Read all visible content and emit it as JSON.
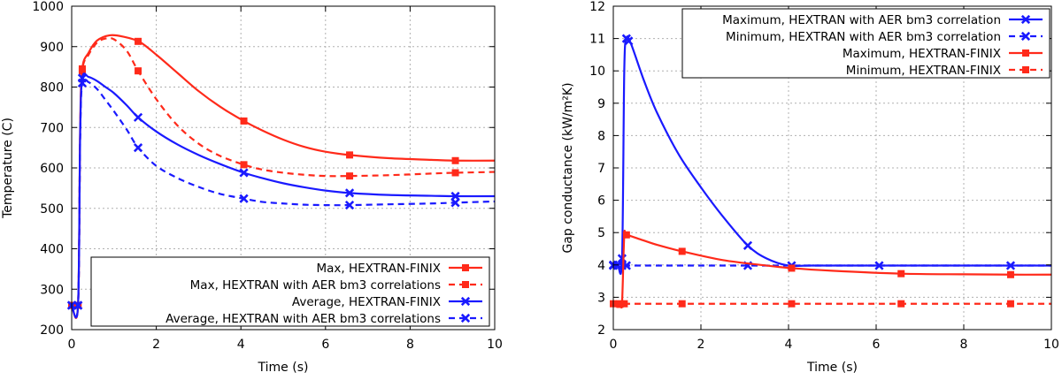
{
  "chart_data": [
    {
      "type": "line",
      "xlabel": "Time (s)",
      "ylabel": "Temperature (C)",
      "xlim": [
        0,
        10
      ],
      "ylim": [
        200,
        1000
      ],
      "xticks": [
        0,
        2,
        4,
        6,
        8,
        10
      ],
      "yticks": [
        200,
        300,
        400,
        500,
        600,
        700,
        800,
        900,
        1000
      ],
      "grid": true,
      "legend_position": "bottom-right",
      "series": [
        {
          "name": "Max, HEXTRAN-FINIX",
          "color": "#ff2a1a",
          "style": "solid",
          "marker": "square",
          "points": [
            [
              0,
              260
            ],
            [
              0.15,
              260
            ],
            [
              0.2,
              700
            ],
            [
              0.25,
              845
            ],
            [
              0.4,
              885
            ],
            [
              0.6,
              915
            ],
            [
              0.9,
              928
            ],
            [
              1.2,
              925
            ],
            [
              1.6,
              912
            ],
            [
              2.0,
              880
            ],
            [
              2.5,
              835
            ],
            [
              3.0,
              790
            ],
            [
              3.5,
              752
            ],
            [
              4.07,
              716
            ],
            [
              4.5,
              693
            ],
            [
              5.0,
              670
            ],
            [
              5.5,
              652
            ],
            [
              6.0,
              640
            ],
            [
              6.57,
              632
            ],
            [
              7.5,
              624
            ],
            [
              8.5,
              620
            ],
            [
              9.07,
              618
            ],
            [
              10,
              618
            ]
          ],
          "marker_x": [
            0,
            0.15,
            0.25,
            1.57,
            4.07,
            6.57,
            9.07
          ]
        },
        {
          "name": "Max, HEXTRAN with AER bm3 correlations",
          "color": "#ff2a1a",
          "style": "dashed",
          "marker": "square",
          "points": [
            [
              0,
              260
            ],
            [
              0.15,
              260
            ],
            [
              0.2,
              680
            ],
            [
              0.25,
              840
            ],
            [
              0.4,
              880
            ],
            [
              0.6,
              910
            ],
            [
              0.8,
              920
            ],
            [
              1.0,
              918
            ],
            [
              1.3,
              890
            ],
            [
              1.57,
              840
            ],
            [
              2.0,
              770
            ],
            [
              2.5,
              705
            ],
            [
              3.0,
              660
            ],
            [
              3.5,
              630
            ],
            [
              4.07,
              608
            ],
            [
              4.5,
              596
            ],
            [
              5.0,
              588
            ],
            [
              5.5,
              583
            ],
            [
              6.0,
              580
            ],
            [
              6.57,
              580
            ],
            [
              7.5,
              582
            ],
            [
              8.5,
              586
            ],
            [
              9.07,
              588
            ],
            [
              10,
              590
            ]
          ],
          "marker_x": [
            0,
            0.15,
            0.25,
            1.57,
            4.07,
            6.57,
            9.07
          ]
        },
        {
          "name": "Average, HEXTRAN-FINIX",
          "color": "#1a1aff",
          "style": "solid",
          "marker": "x",
          "points": [
            [
              0,
              260
            ],
            [
              0.15,
              260
            ],
            [
              0.2,
              680
            ],
            [
              0.25,
              822
            ],
            [
              0.4,
              825
            ],
            [
              0.6,
              815
            ],
            [
              0.8,
              800
            ],
            [
              1.0,
              785
            ],
            [
              1.3,
              755
            ],
            [
              1.57,
              725
            ],
            [
              2.0,
              690
            ],
            [
              2.5,
              658
            ],
            [
              3.0,
              632
            ],
            [
              3.5,
              610
            ],
            [
              4.07,
              588
            ],
            [
              4.5,
              575
            ],
            [
              5.0,
              562
            ],
            [
              5.5,
              552
            ],
            [
              6.0,
              544
            ],
            [
              6.57,
              538
            ],
            [
              7.5,
              533
            ],
            [
              8.5,
              531
            ],
            [
              9.07,
              530
            ],
            [
              10,
              530
            ]
          ],
          "marker_x": [
            0,
            0.15,
            0.25,
            1.57,
            4.07,
            6.57,
            9.07
          ]
        },
        {
          "name": "Average, HEXTRAN with AER bm3 correlations",
          "color": "#1a1aff",
          "style": "dashed",
          "marker": "x",
          "points": [
            [
              0,
              260
            ],
            [
              0.15,
              260
            ],
            [
              0.2,
              670
            ],
            [
              0.25,
              810
            ],
            [
              0.4,
              812
            ],
            [
              0.6,
              795
            ],
            [
              0.8,
              768
            ],
            [
              1.0,
              740
            ],
            [
              1.3,
              695
            ],
            [
              1.57,
              650
            ],
            [
              2.0,
              605
            ],
            [
              2.5,
              575
            ],
            [
              3.0,
              553
            ],
            [
              3.5,
              536
            ],
            [
              4.07,
              524
            ],
            [
              4.5,
              516
            ],
            [
              5.0,
              512
            ],
            [
              5.5,
              509
            ],
            [
              6.0,
              508
            ],
            [
              6.57,
              508
            ],
            [
              7.5,
              510
            ],
            [
              8.5,
              512
            ],
            [
              9.07,
              514
            ],
            [
              10,
              517
            ]
          ],
          "marker_x": [
            0,
            0.15,
            0.25,
            1.57,
            4.07,
            6.57,
            9.07
          ]
        }
      ]
    },
    {
      "type": "line",
      "xlabel": "Time (s)",
      "ylabel": "Gap conductance (kW/m²K)",
      "xlim": [
        0,
        10
      ],
      "ylim": [
        2,
        12
      ],
      "xticks": [
        0,
        2,
        4,
        6,
        8,
        10
      ],
      "yticks": [
        2,
        3,
        4,
        5,
        6,
        7,
        8,
        9,
        10,
        11,
        12
      ],
      "grid": true,
      "legend_position": "top-right",
      "series": [
        {
          "name": "Maximum, HEXTRAN with AER bm3 correlation",
          "color": "#1a1aff",
          "style": "solid",
          "marker": "x",
          "points": [
            [
              0,
              4.0
            ],
            [
              0.1,
              4.0
            ],
            [
              0.2,
              4.2
            ],
            [
              0.25,
              10.0
            ],
            [
              0.3,
              11.0
            ],
            [
              0.4,
              10.85
            ],
            [
              0.7,
              9.7
            ],
            [
              1.0,
              8.7
            ],
            [
              1.5,
              7.4
            ],
            [
              2.0,
              6.4
            ],
            [
              2.5,
              5.5
            ],
            [
              3.07,
              4.6
            ],
            [
              3.5,
              4.2
            ],
            [
              4.0,
              3.98
            ],
            [
              4.5,
              3.98
            ],
            [
              6.07,
              3.98
            ],
            [
              8,
              3.98
            ],
            [
              9.07,
              3.98
            ],
            [
              10,
              3.98
            ]
          ],
          "marker_x": [
            0,
            0.1,
            0.2,
            0.3,
            0.35,
            3.07,
            4.07,
            6.07,
            9.07
          ]
        },
        {
          "name": "Minimum, HEXTRAN with AER bm3 correlation",
          "color": "#1a1aff",
          "style": "dashed",
          "marker": "x",
          "points": [
            [
              0,
              3.98
            ],
            [
              0.5,
              3.98
            ],
            [
              2,
              3.98
            ],
            [
              4,
              3.98
            ],
            [
              6,
              3.98
            ],
            [
              8,
              3.98
            ],
            [
              10,
              3.98
            ]
          ],
          "marker_x": [
            0,
            0.1,
            0.2,
            0.3,
            3.07
          ]
        },
        {
          "name": "Maximum, HEXTRAN-FINIX",
          "color": "#ff2a1a",
          "style": "solid",
          "marker": "square",
          "points": [
            [
              0,
              2.78
            ],
            [
              0.15,
              2.78
            ],
            [
              0.2,
              2.85
            ],
            [
              0.25,
              4.9
            ],
            [
              0.3,
              4.93
            ],
            [
              0.6,
              4.8
            ],
            [
              1.0,
              4.62
            ],
            [
              1.57,
              4.42
            ],
            [
              2.5,
              4.15
            ],
            [
              3.5,
              3.98
            ],
            [
              4.07,
              3.9
            ],
            [
              5.0,
              3.82
            ],
            [
              6.57,
              3.73
            ],
            [
              8.0,
              3.71
            ],
            [
              9.07,
              3.7
            ],
            [
              10,
              3.7
            ]
          ],
          "marker_x": [
            0.15,
            0.3,
            1.57,
            4.07,
            6.57,
            9.07
          ]
        },
        {
          "name": "Minimum, HEXTRAN-FINIX",
          "color": "#ff2a1a",
          "style": "dashed",
          "marker": "square",
          "points": [
            [
              0,
              2.8
            ],
            [
              2,
              2.8
            ],
            [
              4,
              2.8
            ],
            [
              6,
              2.8
            ],
            [
              8,
              2.8
            ],
            [
              10,
              2.8
            ]
          ],
          "marker_x": [
            0,
            0.15,
            0.25,
            1.57,
            4.07,
            6.57,
            9.07
          ]
        }
      ]
    }
  ]
}
